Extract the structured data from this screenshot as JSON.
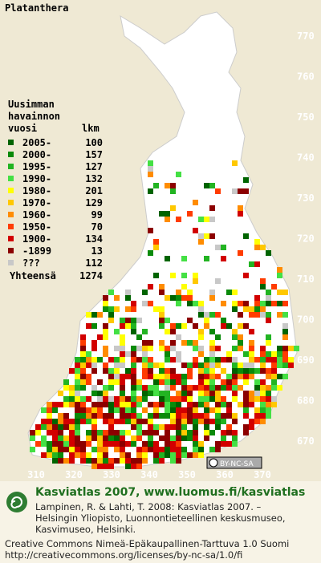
{
  "title": "Platanthera",
  "legend": {
    "heading": [
      "Uusimman",
      "havainnon"
    ],
    "year_header": "vuosi",
    "count_header": "lkm",
    "entries": [
      {
        "period": "2005-",
        "count": 100,
        "color": "#006400"
      },
      {
        "period": "2000-",
        "count": 157,
        "color": "#0a8a0a"
      },
      {
        "period": "1995-",
        "count": 127,
        "color": "#22b422"
      },
      {
        "period": "1990-",
        "count": 132,
        "color": "#44e044"
      },
      {
        "period": "1980-",
        "count": 201,
        "color": "#ffff00"
      },
      {
        "period": "1970-",
        "count": 129,
        "color": "#ffc800"
      },
      {
        "period": "1960-",
        "count": 99,
        "color": "#ff8c00"
      },
      {
        "period": "1950-",
        "count": 70,
        "color": "#ff3c00"
      },
      {
        "period": "1900-",
        "count": 134,
        "color": "#d20000"
      },
      {
        "period": "-1899",
        "count": 13,
        "color": "#8c0000"
      },
      {
        "period": "???",
        "count": 112,
        "color": "#c8c8c8"
      }
    ],
    "total_label": "Yhteensä",
    "total": 1274
  },
  "x_labels": [
    310,
    320,
    330,
    340,
    350,
    360,
    370
  ],
  "y_labels": [
    670,
    680,
    690,
    700,
    710,
    720,
    730,
    740,
    750,
    760,
    770
  ],
  "license_badge": "BY-NC-SA",
  "footer": {
    "heading": "Kasviatlas 2007, www.luomus.fi/kasviatlas",
    "citation": [
      "Lampinen, R. & Lahti, T. 2008: Kasviatlas 2007. –",
      "Helsingin Yliopisto, Luonnontieteellinen keskusmuseo,",
      "Kasvimuseo, Helsinki."
    ],
    "license": [
      "Creative Commons Nimeä-Epäkaupallinen-Tarttuva 1.0 Suomi",
      "http://creativecommons.org/licenses/by-nc-sa/1.0/fi"
    ]
  }
}
